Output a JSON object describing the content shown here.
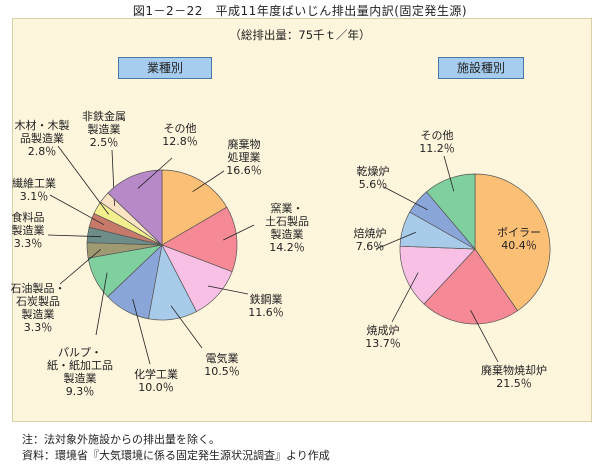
{
  "figure": {
    "title": "図1－2－22　平成11年度ばいじん排出量内訳(固定発生源)",
    "subtitle": "（総排出量：75千ｔ／年）",
    "notes": [
      "注：法対象外施設からの排出量を除く。",
      "資料：環境省『大気環境に係る固定発生源状況調査』より作成"
    ]
  },
  "chart_data": [
    {
      "type": "pie",
      "title": "業種別",
      "unit": "％",
      "slices": [
        {
          "label": "廃棄物処理業",
          "value": 16.6,
          "color": "#fbbf75"
        },
        {
          "label": "窯業・土石製品製造業",
          "value": 14.2,
          "color": "#f58a96"
        },
        {
          "label": "鉄鋼業",
          "value": 11.6,
          "color": "#f7c0e4"
        },
        {
          "label": "電気業",
          "value": 10.5,
          "color": "#a7cbe9"
        },
        {
          "label": "化学工業",
          "value": 10.0,
          "color": "#8aa6d8"
        },
        {
          "label": "パルプ・紙・紙加工品製造業",
          "value": 9.3,
          "color": "#7fcf9f"
        },
        {
          "label": "石油製品・石炭製品製造業",
          "value": 3.3,
          "color": "#a09a72"
        },
        {
          "label": "食料品製造業",
          "value": 3.3,
          "color": "#6f8d88"
        },
        {
          "label": "繊維工業",
          "value": 3.1,
          "color": "#c87a6a"
        },
        {
          "label": "木材・木製品製造業",
          "value": 2.8,
          "color": "#f4ef8e"
        },
        {
          "label": "非鉄金属製造業",
          "value": 2.5,
          "color": "#fbe3c4"
        },
        {
          "label": "その他",
          "value": 12.8,
          "color": "#b889c8"
        }
      ],
      "callouts": [
        {
          "lines": [
            "廃棄物",
            "処理業",
            "16.6％"
          ]
        },
        {
          "lines": [
            "窯業・",
            "土石製品",
            "製造業",
            "14.2％"
          ]
        },
        {
          "lines": [
            "鉄鋼業",
            "11.6％"
          ]
        },
        {
          "lines": [
            "電気業",
            "10.5％"
          ]
        },
        {
          "lines": [
            "化学工業",
            "10.0％"
          ]
        },
        {
          "lines": [
            "パルプ・",
            "紙・紙加工品",
            "製造業",
            "9.3％"
          ]
        },
        {
          "lines": [
            "石油製品・",
            "石炭製品",
            "製造業",
            "3.3％"
          ]
        },
        {
          "lines": [
            "食料品",
            "製造業",
            "3.3％"
          ]
        },
        {
          "lines": [
            "繊維工業",
            "3.1％"
          ]
        },
        {
          "lines": [
            "木材・木製",
            "品製造業",
            "2.8％"
          ]
        },
        {
          "lines": [
            "非鉄金属",
            "製造業",
            "2.5％"
          ]
        },
        {
          "lines": [
            "その他",
            "12.8％"
          ]
        }
      ]
    },
    {
      "type": "pie",
      "title": "施設種別",
      "unit": "％",
      "slices": [
        {
          "label": "ボイラー",
          "value": 40.4,
          "color": "#fbbf75"
        },
        {
          "label": "廃棄物焼却炉",
          "value": 21.5,
          "color": "#f58a96"
        },
        {
          "label": "焼成炉",
          "value": 13.7,
          "color": "#f7c0e4"
        },
        {
          "label": "焙焼炉",
          "value": 7.6,
          "color": "#a7cbe9"
        },
        {
          "label": "乾燥炉",
          "value": 5.6,
          "color": "#8aa6d8"
        },
        {
          "label": "その他",
          "value": 11.2,
          "color": "#7fcf9f"
        }
      ],
      "callouts": [
        {
          "lines": [
            "ボイラー",
            "40.4％"
          ]
        },
        {
          "lines": [
            "廃棄物焼却炉",
            "21.5％"
          ]
        },
        {
          "lines": [
            "焼成炉",
            "13.7％"
          ]
        },
        {
          "lines": [
            "焙焼炉",
            "7.6％"
          ]
        },
        {
          "lines": [
            "乾燥炉",
            "5.6％"
          ]
        },
        {
          "lines": [
            "その他",
            "11.2％"
          ]
        }
      ]
    }
  ]
}
